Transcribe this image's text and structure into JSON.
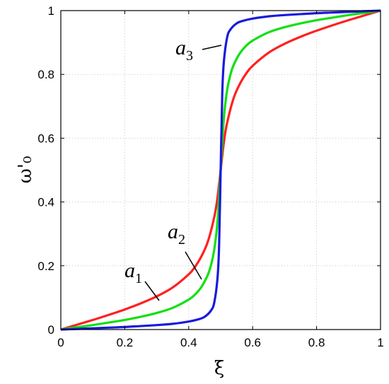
{
  "chart_data": {
    "type": "line",
    "xlabel": "ξ",
    "ylabel": "ω'₀",
    "xlim": [
      0,
      1
    ],
    "ylim": [
      0,
      1
    ],
    "grid": true,
    "x_ticks": [
      "0",
      "0.2",
      "0.4",
      "0.6",
      "0.8",
      "1"
    ],
    "y_ticks": [
      "0",
      "0.2",
      "0.4",
      "0.6",
      "0.8",
      "1"
    ],
    "series": [
      {
        "color": "#ff2020",
        "x": [
          0,
          0.05,
          0.1,
          0.15,
          0.2,
          0.25,
          0.3,
          0.35,
          0.4,
          0.42,
          0.44,
          0.46,
          0.48,
          0.49,
          0.5,
          0.51,
          0.52,
          0.54,
          0.56,
          0.58,
          0.6,
          0.65,
          0.7,
          0.75,
          0.8,
          0.85,
          0.9,
          0.95,
          1
        ],
        "y": [
          0,
          0.015,
          0.03,
          0.046,
          0.063,
          0.082,
          0.104,
          0.132,
          0.173,
          0.197,
          0.23,
          0.276,
          0.353,
          0.413,
          0.5,
          0.587,
          0.647,
          0.724,
          0.77,
          0.803,
          0.827,
          0.868,
          0.896,
          0.918,
          0.937,
          0.954,
          0.97,
          0.985,
          1
        ]
      },
      {
        "color": "#10e010",
        "x": [
          0,
          0.05,
          0.1,
          0.15,
          0.2,
          0.25,
          0.3,
          0.35,
          0.4,
          0.42,
          0.44,
          0.46,
          0.47,
          0.48,
          0.49,
          0.5,
          0.51,
          0.52,
          0.53,
          0.54,
          0.56,
          0.58,
          0.6,
          0.65,
          0.7,
          0.75,
          0.8,
          0.85,
          0.9,
          0.95,
          1
        ],
        "y": [
          0,
          0.007,
          0.014,
          0.022,
          0.03,
          0.04,
          0.052,
          0.068,
          0.094,
          0.11,
          0.134,
          0.172,
          0.203,
          0.251,
          0.337,
          0.5,
          0.663,
          0.749,
          0.797,
          0.828,
          0.866,
          0.89,
          0.906,
          0.932,
          0.948,
          0.96,
          0.97,
          0.978,
          0.986,
          0.993,
          1
        ]
      },
      {
        "color": "#1a1adc",
        "x": [
          0,
          0.05,
          0.1,
          0.15,
          0.2,
          0.25,
          0.3,
          0.35,
          0.4,
          0.43,
          0.45,
          0.47,
          0.48,
          0.49,
          0.495,
          0.5,
          0.505,
          0.51,
          0.52,
          0.53,
          0.55,
          0.57,
          0.6,
          0.65,
          0.7,
          0.75,
          0.8,
          0.85,
          0.9,
          0.95,
          1
        ],
        "y": [
          0,
          0.002,
          0.004,
          0.006,
          0.008,
          0.011,
          0.014,
          0.018,
          0.025,
          0.032,
          0.04,
          0.06,
          0.085,
          0.16,
          0.26,
          0.5,
          0.74,
          0.84,
          0.915,
          0.94,
          0.96,
          0.968,
          0.975,
          0.982,
          0.986,
          0.989,
          0.992,
          0.994,
          0.996,
          0.998,
          1
        ]
      }
    ],
    "annotations": [
      {
        "base": "a",
        "sub": "1"
      },
      {
        "base": "a",
        "sub": "2"
      },
      {
        "base": "a",
        "sub": "3"
      }
    ]
  }
}
